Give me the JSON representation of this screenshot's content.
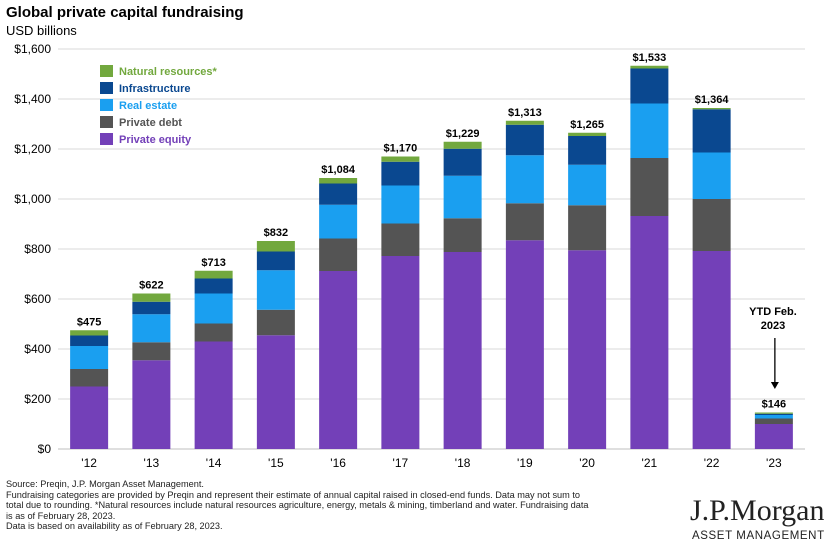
{
  "title": "Global private capital fundraising",
  "subtitle": "USD billions",
  "annotation": "YTD Feb.\n2023",
  "footnote": [
    "Source: Preqin, J.P. Morgan Asset Management.",
    "Fundraising categories are provided by Preqin and represent their estimate of annual capital raised in closed-end funds. Data may not sum to",
    "total due to rounding. *Natural resources include natural resources agriculture, energy, metals & mining, timberland and water.  Fundraising data",
    "is as of February 28, 2023.",
    "Data is based on availability as of February 28, 2023."
  ],
  "logo": {
    "main": "J.P.Morgan",
    "sub": "ASSET MANAGEMENT"
  },
  "chart_data": {
    "type": "bar",
    "stacked": true,
    "categories": [
      "'12",
      "'13",
      "'14",
      "'15",
      "'16",
      "'17",
      "'18",
      "'19",
      "'20",
      "'21",
      "'22",
      "'23"
    ],
    "series": [
      {
        "name": "Private equity",
        "color": "#7340b8",
        "values": [
          250,
          355,
          430,
          455,
          712,
          772,
          788,
          835,
          795,
          932,
          792,
          100
        ]
      },
      {
        "name": "Private debt",
        "color": "#545454",
        "values": [
          70,
          72,
          72,
          102,
          130,
          130,
          135,
          148,
          180,
          232,
          208,
          22
        ]
      },
      {
        "name": "Real estate",
        "color": "#1a9ff0",
        "values": [
          92,
          112,
          120,
          158,
          135,
          152,
          170,
          192,
          162,
          218,
          186,
          14
        ]
      },
      {
        "name": "Infrastructure",
        "color": "#0a4890",
        "values": [
          42,
          50,
          60,
          75,
          85,
          95,
          108,
          122,
          115,
          140,
          173,
          5
        ]
      },
      {
        "name": "Natural resources*",
        "color": "#72a83e",
        "values": [
          21,
          33,
          31,
          42,
          22,
          21,
          28,
          16,
          13,
          11,
          5,
          5
        ]
      }
    ],
    "totals": [
      "$475",
      "$622",
      "$713",
      "$832",
      "$1,084",
      "$1,170",
      "$1,229",
      "$1,313",
      "$1,265",
      "$1,533",
      "$1,364",
      "$146"
    ],
    "total_values": [
      475,
      622,
      713,
      832,
      1084,
      1170,
      1229,
      1313,
      1265,
      1533,
      1364,
      146
    ],
    "y_ticks": [
      "$0",
      "$200",
      "$400",
      "$600",
      "$800",
      "$1,000",
      "$1,200",
      "$1,400",
      "$1,600"
    ],
    "ylim": [
      0,
      1600
    ],
    "grid": true,
    "legend_position": "top-left"
  }
}
